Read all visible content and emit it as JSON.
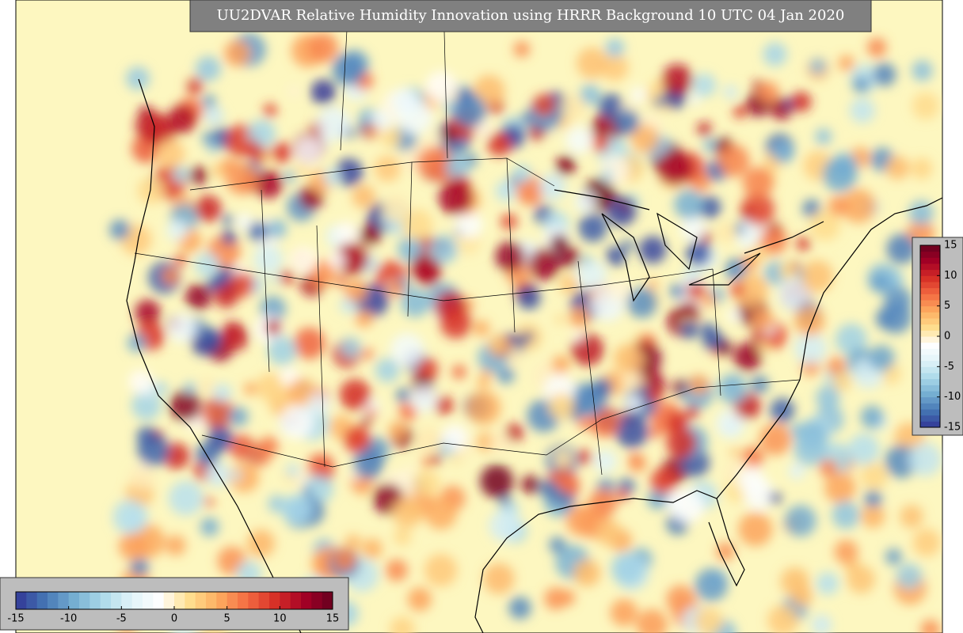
{
  "title": "UU2DVAR Relative Humidity Innovation using HRRR Background 10 UTC 04 Jan 2020",
  "colormap": [
    "#313695",
    "#4575b4",
    "#74add1",
    "#abd9e9",
    "#e0f3f8",
    "#ffffff",
    "#fee090",
    "#fdae61",
    "#f46d43",
    "#d73027",
    "#a50026",
    "#67001f"
  ],
  "colorbars": [
    {
      "orientation": "vertical",
      "lim": [
        -15,
        15
      ],
      "ticks": [
        15,
        10,
        5,
        0,
        -5,
        -10,
        -15
      ]
    },
    {
      "orientation": "horizontal",
      "lim": [
        -15,
        15
      ],
      "ticks": [
        -15,
        -10,
        -5,
        0,
        5,
        10,
        15
      ]
    }
  ]
}
